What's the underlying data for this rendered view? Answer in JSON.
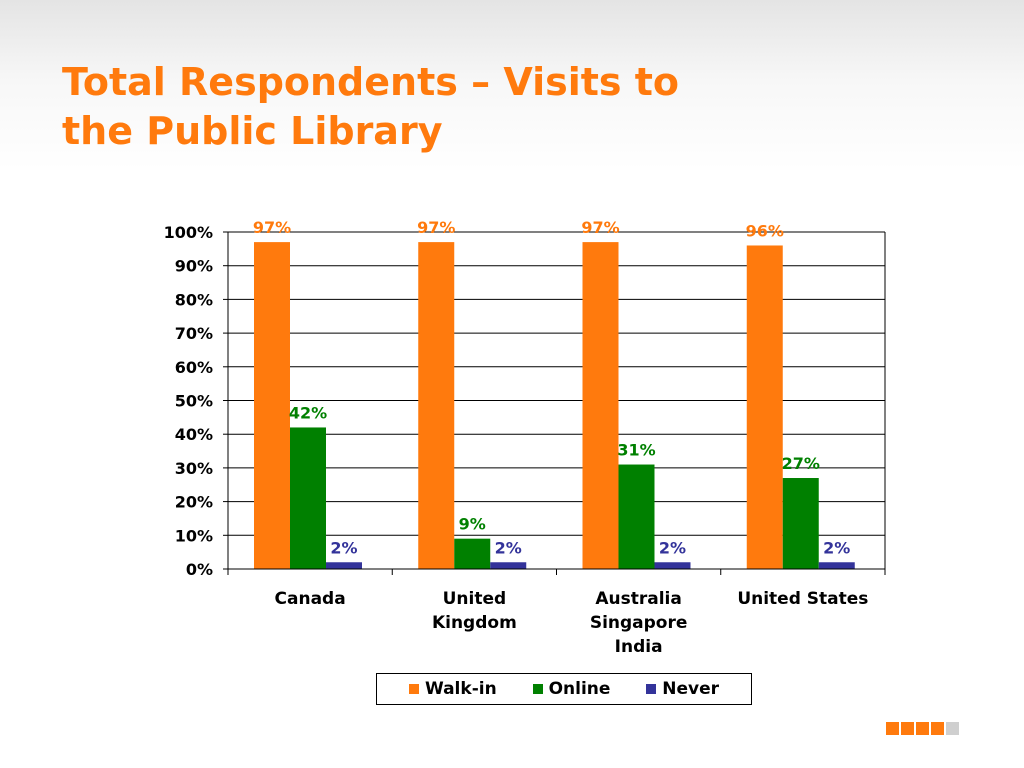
{
  "slide": {
    "title_line1": "Total Respondents – Visits to",
    "title_line2": "the Public Library"
  },
  "colors": {
    "title": "#ff7a0d",
    "walk_in": "#ff7a0d",
    "online": "#008000",
    "never": "#33339a",
    "deco_active": "#ff7a0d",
    "deco_inactive": "#cfcfcf"
  },
  "chart_data": {
    "type": "bar",
    "categories": [
      [
        "Canada"
      ],
      [
        "United",
        "Kingdom"
      ],
      [
        "Australia",
        "Singapore",
        "India"
      ],
      [
        "United States"
      ]
    ],
    "series": [
      {
        "name": "Walk-in",
        "values": [
          97,
          97,
          97,
          96
        ],
        "labels": [
          "97%",
          "97%",
          "97%",
          "96%"
        ],
        "color": "#ff7a0d"
      },
      {
        "name": "Online",
        "values": [
          42,
          9,
          31,
          27
        ],
        "labels": [
          "42%",
          "9%",
          "31%",
          "27%"
        ],
        "color": "#008000"
      },
      {
        "name": "Never",
        "values": [
          2,
          2,
          2,
          2
        ],
        "labels": [
          "2%",
          "2%",
          "2%",
          "2%"
        ],
        "color": "#33339a"
      }
    ],
    "yticks": [
      "0%",
      "10%",
      "20%",
      "30%",
      "40%",
      "50%",
      "60%",
      "70%",
      "80%",
      "90%",
      "100%"
    ],
    "ylim": [
      0,
      100
    ],
    "grid": true,
    "legend_position": "bottom"
  }
}
